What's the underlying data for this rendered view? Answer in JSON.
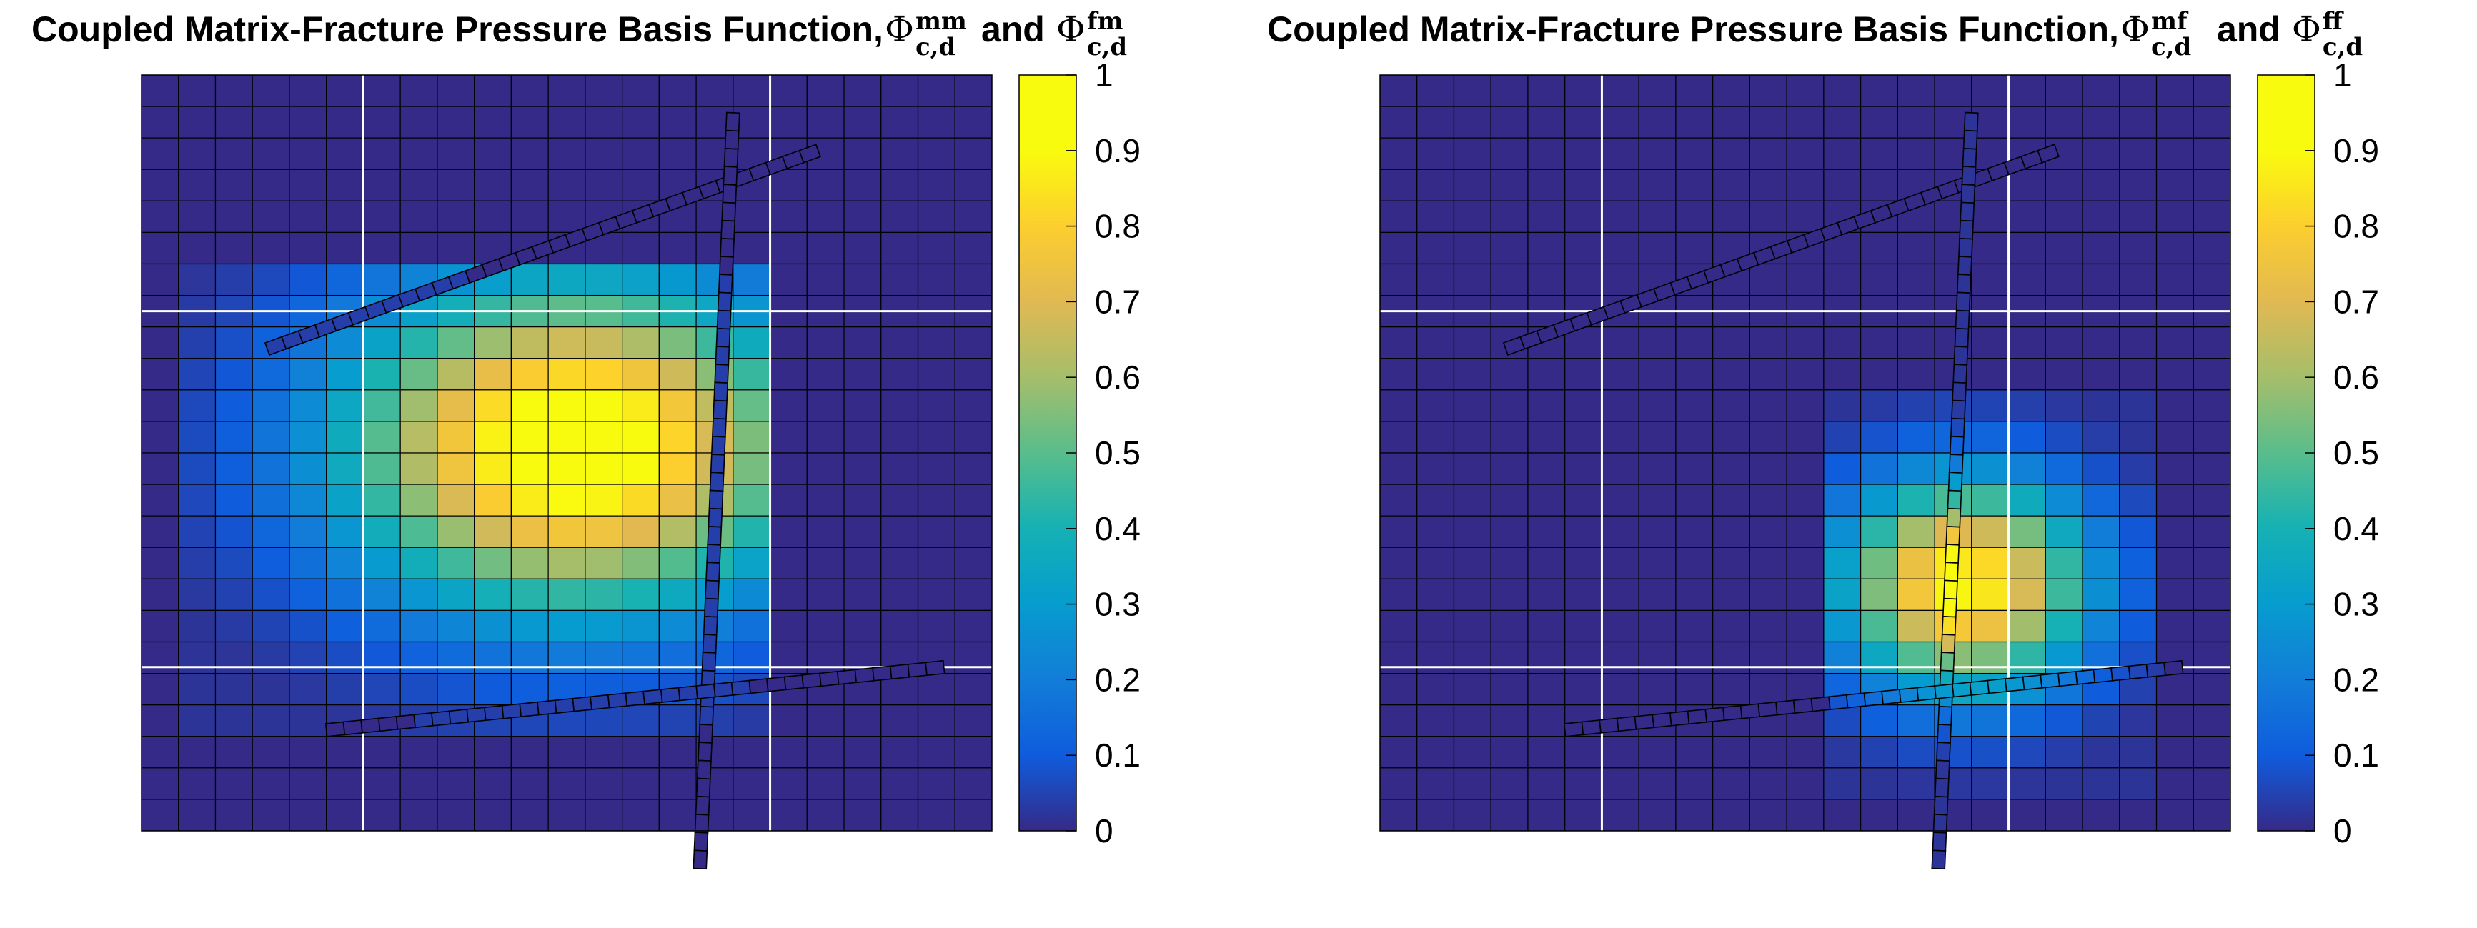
{
  "chart_data": [
    {
      "type": "heatmap",
      "title": "Coupled Matrix-Fracture Pressure Basis Function,",
      "title_terms": [
        {
          "symbol": "Φ",
          "sup": "mm",
          "sub": "c,d"
        },
        {
          "joiner": "and"
        },
        {
          "symbol": "Φ",
          "sup": "fm",
          "sub": "c,d"
        }
      ],
      "grid": {
        "nx": 23,
        "ny": 24,
        "xlim": [
          0,
          23
        ],
        "ylim": [
          0,
          24
        ]
      },
      "coarse_lines": {
        "x": [
          6,
          17
        ],
        "y": [
          7.5,
          18.8
        ]
      },
      "peak": {
        "x": 11.7,
        "y": 11.8,
        "value": 1.0
      },
      "falloff": {
        "sx": 6.2,
        "sy": 5.2,
        "floor": 0.02
      },
      "support_region": {
        "x": [
          1.5,
          16.5
        ],
        "y": [
          6.5,
          20.5
        ]
      },
      "fractures": [
        {
          "x": [
            3.4,
            18.3
          ],
          "y": [
            8.7,
            2.4
          ]
        },
        {
          "x": [
            16.0,
            15.1
          ],
          "y": [
            1.2,
            25.2
          ]
        },
        {
          "x": [
            5.0,
            21.7
          ],
          "y": [
            20.8,
            18.8
          ]
        }
      ],
      "colorbar": {
        "min": 0,
        "max": 1,
        "ticks": [
          "0",
          "0.1",
          "0.2",
          "0.3",
          "0.4",
          "0.5",
          "0.6",
          "0.7",
          "0.8",
          "0.9",
          "1"
        ]
      }
    },
    {
      "type": "heatmap",
      "title": "Coupled Matrix-Fracture Pressure Basis Function,",
      "title_terms": [
        {
          "symbol": "Φ",
          "sup": "mf",
          "sub": "c,d"
        },
        {
          "joiner": "and"
        },
        {
          "symbol": "Φ",
          "sup": "ff",
          "sub": "c,d"
        }
      ],
      "grid": {
        "nx": 23,
        "ny": 24,
        "xlim": [
          0,
          23
        ],
        "ylim": [
          0,
          24
        ]
      },
      "coarse_lines": {
        "x": [
          6,
          17
        ],
        "y": [
          7.5,
          18.8
        ]
      },
      "peak": {
        "x": 15.8,
        "y": 16.2,
        "value": 0.9
      },
      "falloff": {
        "sx": 3.3,
        "sy": 3.4,
        "floor": 0.02
      },
      "support_region": {
        "x": [
          12,
          21
        ],
        "y": [
          10.5,
          23
        ]
      },
      "fractures": [
        {
          "x": [
            3.4,
            18.3
          ],
          "y": [
            8.7,
            2.4
          ]
        },
        {
          "x": [
            16.0,
            15.1
          ],
          "y": [
            1.2,
            25.2
          ]
        },
        {
          "x": [
            5.0,
            21.7
          ],
          "y": [
            20.8,
            18.8
          ]
        }
      ],
      "fracture_values": {
        "center_index": 1,
        "peak_y": 16.2,
        "sigma": 3.0
      },
      "colorbar": {
        "min": 0,
        "max": 1,
        "ticks": [
          "0",
          "0.1",
          "0.2",
          "0.3",
          "0.4",
          "0.5",
          "0.6",
          "0.7",
          "0.8",
          "0.9",
          "1"
        ]
      }
    }
  ]
}
